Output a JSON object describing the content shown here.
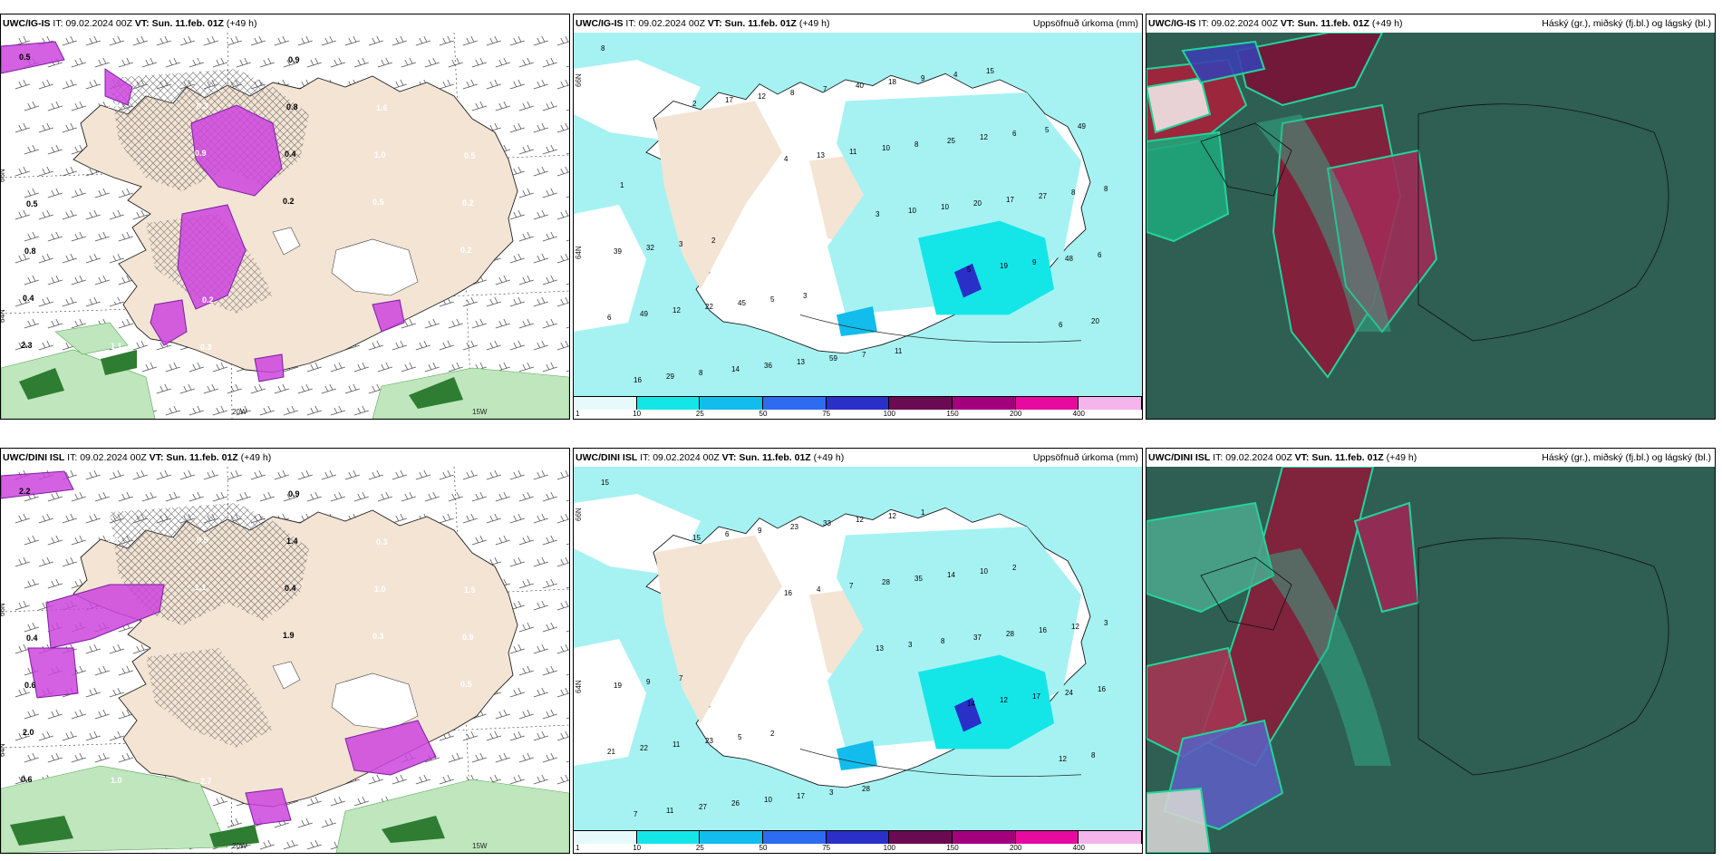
{
  "panels": [
    {
      "id": "top-left",
      "model": "UWC/IG-IS",
      "it_label": "IT:",
      "it_value": "09.02.2024 00Z",
      "vt_label": "VT: Sun. 11.feb. 01Z",
      "lead": "(+49 h)",
      "right_title": "",
      "kind": "weather",
      "lat_labels": [
        "66N",
        "64N"
      ],
      "lon_labels": [
        "20W",
        "15W"
      ],
      "values": [
        "0.5",
        "0.4",
        "0.9",
        "0.2",
        "1.3",
        "2.5",
        "2.3",
        "2.7",
        "0.3",
        "0.4",
        "0.5",
        "0.2",
        "0.4",
        "1.1",
        "2.0",
        "0.8",
        "1.0",
        "0.2",
        "0.8",
        "0.2",
        "0.3",
        "0.9",
        "1.6",
        "0.5",
        "0.5",
        "0.3",
        "0.2"
      ]
    },
    {
      "id": "top-middle",
      "model": "UWC/IG-IS",
      "it_label": "IT:",
      "it_value": "09.02.2024 00Z",
      "vt_label": "VT: Sun. 11.feb. 01Z",
      "lead": "(+49 h)",
      "right_title": "Uppsöfnuð úrkoma (mm)",
      "kind": "precip",
      "lat_labels": [
        "66N",
        "64N"
      ],
      "values": [
        "8",
        "2",
        "4",
        "3",
        "5",
        "6",
        "16",
        "17",
        "13",
        "10",
        "19",
        "20",
        "29",
        "12",
        "11",
        "10",
        "9",
        "6",
        "8",
        "8",
        "10",
        "20",
        "48",
        "49",
        "14",
        "7",
        "8",
        "17",
        "6",
        "12",
        "36",
        "40",
        "25",
        "27",
        "39",
        "22",
        "13",
        "18",
        "12",
        "8",
        "32",
        "45",
        "59",
        "9",
        "6",
        "8",
        "3",
        "5",
        "7",
        "4",
        "5",
        "1",
        "2",
        "3",
        "11",
        "15",
        "49"
      ]
    },
    {
      "id": "top-right",
      "model": "UWC/IG-IS",
      "it_label": "IT:",
      "it_value": "09.02.2024 00Z",
      "vt_label": "VT: Sun. 11.feb. 01Z",
      "lead": "(+49 h)",
      "right_title": "Háský (gr.), miðský (fj.bl.) og lágský (bl.)",
      "kind": "cloud"
    },
    {
      "id": "bottom-left",
      "model": "UWC/DINI ISL",
      "it_label": "IT:",
      "it_value": "09.02.2024 00Z",
      "vt_label": "VT: Sun. 11.feb. 01Z",
      "lead": "(+49 h)",
      "right_title": "",
      "kind": "weather",
      "lat_labels": [
        "66N",
        "64N"
      ],
      "lon_labels": [
        "20W",
        "15W"
      ],
      "values": [
        "2.2",
        "0.6",
        "1.1",
        "1.9",
        "1.6",
        "0.3",
        "0.6",
        "0.8",
        "0.5",
        "0.4",
        "0.3",
        "0.5",
        "2.0",
        "1.0",
        "0.6",
        "1.4",
        "1.0",
        "0.9",
        "0.6",
        "0.3",
        "2.7",
        "0.9",
        "0.3",
        "1.5",
        "0.4",
        "0.4"
      ]
    },
    {
      "id": "bottom-middle",
      "model": "UWC/DINI ISL",
      "it_label": "IT:",
      "it_value": "09.02.2024 00Z",
      "vt_label": "VT: Sun. 11.feb. 01Z",
      "lead": "(+49 h)",
      "right_title": "Uppsöfnuð úrkoma (mm)",
      "kind": "precip",
      "lat_labels": [
        "66N",
        "64N"
      ],
      "values": [
        "15",
        "15",
        "16",
        "13",
        "14",
        "12",
        "7",
        "6",
        "4",
        "3",
        "12",
        "8",
        "11",
        "9",
        "7",
        "8",
        "17",
        "21",
        "27",
        "23",
        "28",
        "37",
        "24",
        "22",
        "26",
        "33",
        "35",
        "28",
        "16",
        "11",
        "10",
        "12",
        "14",
        "16",
        "19",
        "23",
        "17",
        "12",
        "10",
        "12",
        "9",
        "5",
        "3",
        "1",
        "2",
        "3",
        "7",
        "2",
        "28"
      ]
    },
    {
      "id": "bottom-right",
      "model": "UWC/DINI ISL",
      "it_label": "IT:",
      "it_value": "09.02.2024 00Z",
      "vt_label": "VT: Sun. 11.feb. 01Z",
      "lead": "(+49 h)",
      "right_title": "Háský (gr.), miðský (fj.bl.) og lágský (bl.)",
      "kind": "cloud"
    }
  ],
  "colorbar": {
    "labels": [
      "1",
      "10",
      "25",
      "50",
      "75",
      "100",
      "150",
      "200",
      "400"
    ],
    "colors": [
      "#e6fafc",
      "#14e6e8",
      "#12bcec",
      "#2d6cf0",
      "#2a2fc8",
      "#6a0a52",
      "#a3007e",
      "#e60aa0",
      "#f4b4ec"
    ]
  },
  "colors": {
    "land": "#f3e4d4",
    "sea_precip": "#a6f2f3",
    "cloud_bg": "#2f5e52",
    "precip_pink": "#cc44dd",
    "precip_green": "#2e7d32"
  }
}
